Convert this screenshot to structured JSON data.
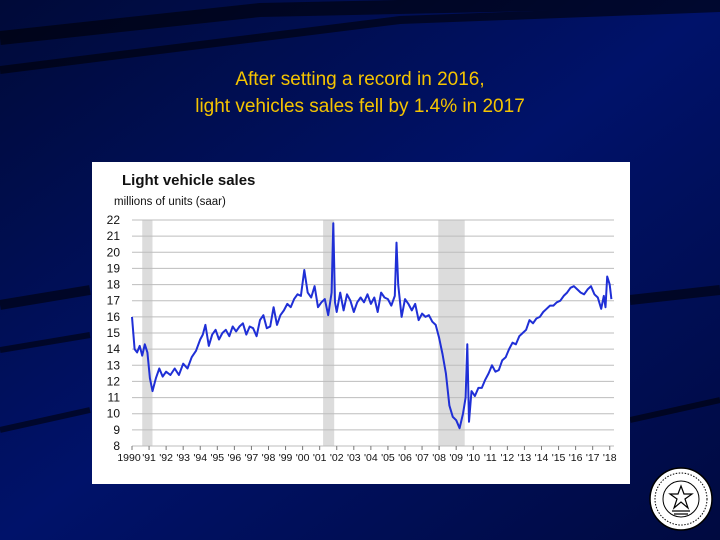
{
  "slide": {
    "title_line1": "After setting a record in 2016,",
    "title_line2": "light vehicles sales fell by 1.4% in 2017",
    "title_color": "#f5c400",
    "background_color": "#000d4a"
  },
  "seal": {
    "icon": "federal-reserve-seal-icon"
  },
  "chart_data": {
    "type": "line",
    "title": "Light vehicle sales",
    "ylabel": "millions of units (saar)",
    "xlabel": "",
    "ylim": [
      8,
      22
    ],
    "xlim": [
      1990,
      2018.25
    ],
    "yticks": [
      "8",
      "9",
      "10",
      "11",
      "12",
      "13",
      "14",
      "15",
      "16",
      "17",
      "18",
      "19",
      "20",
      "21",
      "22"
    ],
    "xtick_labels": [
      "1990",
      "'91",
      "'92",
      "'93",
      "'94",
      "'95",
      "'96",
      "'97",
      "'98",
      "'99",
      "'00",
      "'01",
      "'02",
      "'03",
      "'04",
      "'05",
      "'06",
      "'07",
      "'08",
      "'09",
      "'10",
      "'11",
      "'12",
      "'13",
      "'14",
      "'15",
      "'16",
      "'17",
      "'18"
    ],
    "line_color": "#1f2fd6",
    "recession_color": "#dcdcdc",
    "recessions": [
      [
        1990.6,
        1991.2
      ],
      [
        2001.2,
        2001.85
      ],
      [
        2007.95,
        2009.5
      ]
    ],
    "series": [
      {
        "name": "Light vehicle sales",
        "x": [
          1990.0,
          1990.15,
          1990.3,
          1990.45,
          1990.6,
          1990.75,
          1990.9,
          1991.05,
          1991.2,
          1991.4,
          1991.6,
          1991.8,
          1992.0,
          1992.25,
          1992.5,
          1992.75,
          1993.0,
          1993.25,
          1993.5,
          1993.75,
          1994.0,
          1994.15,
          1994.3,
          1994.5,
          1994.7,
          1994.9,
          1995.1,
          1995.3,
          1995.5,
          1995.7,
          1995.9,
          1996.1,
          1996.3,
          1996.5,
          1996.7,
          1996.9,
          1997.1,
          1997.3,
          1997.5,
          1997.7,
          1997.9,
          1998.1,
          1998.3,
          1998.5,
          1998.7,
          1998.9,
          1999.1,
          1999.3,
          1999.5,
          1999.7,
          1999.9,
          2000.1,
          2000.3,
          2000.5,
          2000.7,
          2000.9,
          2001.1,
          2001.3,
          2001.5,
          2001.7,
          2001.8,
          2001.9,
          2002.0,
          2002.2,
          2002.4,
          2002.6,
          2002.8,
          2003.0,
          2003.2,
          2003.4,
          2003.6,
          2003.8,
          2004.0,
          2004.2,
          2004.4,
          2004.6,
          2004.8,
          2005.0,
          2005.2,
          2005.4,
          2005.5,
          2005.6,
          2005.8,
          2006.0,
          2006.2,
          2006.4,
          2006.6,
          2006.8,
          2007.0,
          2007.2,
          2007.4,
          2007.6,
          2007.8,
          2008.0,
          2008.2,
          2008.4,
          2008.6,
          2008.8,
          2009.0,
          2009.2,
          2009.4,
          2009.55,
          2009.65,
          2009.75,
          2009.9,
          2010.1,
          2010.3,
          2010.5,
          2010.7,
          2010.9,
          2011.1,
          2011.3,
          2011.5,
          2011.7,
          2011.9,
          2012.1,
          2012.3,
          2012.5,
          2012.7,
          2012.9,
          2013.1,
          2013.3,
          2013.5,
          2013.7,
          2013.9,
          2014.1,
          2014.3,
          2014.5,
          2014.7,
          2014.9,
          2015.1,
          2015.3,
          2015.5,
          2015.7,
          2015.9,
          2016.1,
          2016.3,
          2016.5,
          2016.7,
          2016.9,
          2017.1,
          2017.3,
          2017.5,
          2017.65,
          2017.75,
          2017.85,
          2018.0,
          2018.1
        ],
        "values": [
          16.0,
          14.0,
          13.8,
          14.2,
          13.6,
          14.3,
          13.8,
          12.2,
          11.4,
          12.2,
          12.8,
          12.3,
          12.6,
          12.4,
          12.8,
          12.4,
          13.1,
          12.8,
          13.5,
          13.9,
          14.6,
          14.9,
          15.5,
          14.2,
          14.9,
          15.2,
          14.6,
          15.0,
          15.2,
          14.8,
          15.4,
          15.1,
          15.4,
          15.6,
          14.9,
          15.4,
          15.3,
          14.8,
          15.8,
          16.1,
          15.3,
          15.4,
          16.6,
          15.5,
          16.1,
          16.4,
          16.8,
          16.6,
          17.1,
          17.4,
          17.3,
          18.9,
          17.5,
          17.2,
          17.9,
          16.6,
          16.9,
          17.1,
          16.1,
          17.5,
          21.8,
          16.9,
          16.3,
          17.5,
          16.4,
          17.4,
          17.0,
          16.3,
          16.9,
          17.2,
          16.9,
          17.4,
          16.8,
          17.2,
          16.3,
          17.5,
          17.2,
          17.1,
          16.7,
          17.3,
          20.6,
          18.0,
          16.0,
          17.1,
          16.8,
          16.4,
          16.8,
          15.8,
          16.2,
          16.0,
          16.1,
          15.7,
          15.5,
          14.7,
          13.7,
          12.5,
          10.5,
          9.8,
          9.6,
          9.1,
          10.0,
          11.0,
          14.3,
          9.5,
          11.4,
          11.1,
          11.6,
          11.6,
          12.1,
          12.5,
          13.0,
          12.6,
          12.7,
          13.3,
          13.5,
          14.0,
          14.4,
          14.3,
          14.8,
          15.0,
          15.2,
          15.8,
          15.6,
          15.9,
          16.0,
          16.3,
          16.5,
          16.7,
          16.7,
          16.9,
          17.0,
          17.3,
          17.5,
          17.8,
          17.9,
          17.7,
          17.5,
          17.4,
          17.7,
          17.9,
          17.4,
          17.2,
          16.5,
          17.3,
          16.6,
          18.5,
          18.0,
          17.1
        ]
      }
    ]
  }
}
